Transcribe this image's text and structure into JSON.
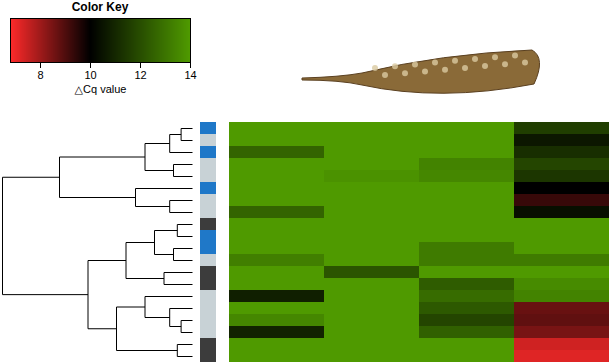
{
  "chart_data": {
    "type": "heatmap",
    "title": "Color Key",
    "color_label": "△Cq value",
    "color_range": [
      6.8,
      14
    ],
    "color_ticks": [
      8,
      10,
      12,
      14
    ],
    "color_midpoint": 10,
    "colors": [
      "#ff2a2a",
      "#000000",
      "#4f9a00"
    ],
    "tick_labels": false,
    "cells": [
      [
        14,
        14,
        14,
        11.6
      ],
      [
        14,
        14,
        14,
        10.6
      ],
      [
        12.6,
        14,
        14,
        11.2
      ],
      [
        14,
        14,
        13.4,
        11.8
      ],
      [
        14,
        13.8,
        13.5,
        11.4
      ],
      [
        14,
        14,
        14,
        10.0
      ],
      [
        14,
        14,
        14,
        9.3
      ],
      [
        12.6,
        14,
        14,
        10.4
      ],
      [
        14,
        14,
        14,
        14
      ],
      [
        14,
        14,
        14,
        14
      ],
      [
        14,
        14,
        13.2,
        14
      ],
      [
        13.3,
        14,
        13.2,
        13.2
      ],
      [
        14,
        12.2,
        14,
        14
      ],
      [
        14,
        14,
        12.4,
        13.6
      ],
      [
        10.8,
        14,
        12.8,
        13.4
      ],
      [
        14,
        14,
        12.3,
        8.7
      ],
      [
        13.5,
        14,
        11.8,
        8.8
      ],
      [
        10.9,
        14,
        12.5,
        8.5
      ],
      [
        14,
        14,
        14,
        7.4
      ],
      [
        14,
        14,
        14,
        7.2
      ]
    ],
    "row_colors": [
      "#1f78c8",
      "#c8d2d6",
      "#1f78c8",
      "#c8d2d6",
      "#c8d2d6",
      "#1f78c8",
      "#c8d2d6",
      "#c8d2d6",
      "#3c3c3c",
      "#1f78c8",
      "#1f78c8",
      "#c8d2d6",
      "#3c3c3c",
      "#3c3c3c",
      "#c8d2d6",
      "#c8d2d6",
      "#c8d2d6",
      "#c8d2d6",
      "#3c3c3c",
      "#3c3c3c"
    ],
    "dendrogram": {
      "height": 1.0,
      "children": [
        {
          "height": 0.7,
          "children": [
            {
              "height": 0.25,
              "children": [
                {
                  "height": 0.12,
                  "children": [
                    {
                      "height": 0.06,
                      "children": [
                        0,
                        1
                      ]
                    },
                    2
                  ]
                },
                {
                  "height": 0.1,
                  "children": [
                    3,
                    4
                  ]
                }
              ]
            },
            {
              "height": 0.3,
              "children": [
                5,
                {
                  "height": 0.12,
                  "children": [
                    6,
                    7
                  ]
                }
              ]
            }
          ]
        },
        {
          "height": 0.55,
          "children": [
            {
              "height": 0.35,
              "children": [
                {
                  "height": 0.2,
                  "children": [
                    {
                      "height": 0.08,
                      "children": [
                        8,
                        9
                      ]
                    },
                    {
                      "height": 0.1,
                      "children": [
                        10,
                        11
                      ]
                    }
                  ]
                },
                {
                  "height": 0.15,
                  "children": [
                    12,
                    13
                  ]
                }
              ]
            },
            {
              "height": 0.4,
              "children": [
                {
                  "height": 0.25,
                  "children": [
                    14,
                    {
                      "height": 0.12,
                      "children": [
                        15,
                        {
                          "height": 0.06,
                          "children": [
                            16,
                            17
                          ]
                        }
                      ]
                    }
                  ]
                },
                {
                  "height": 0.08,
                  "children": [
                    18,
                    19
                  ]
                }
              ]
            }
          ]
        }
      ]
    }
  }
}
